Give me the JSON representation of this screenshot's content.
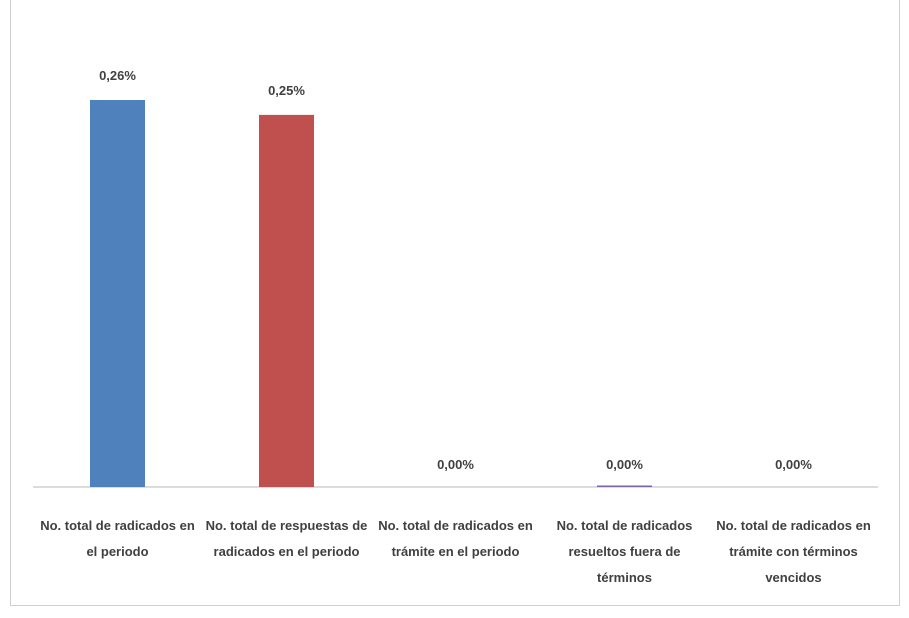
{
  "chart_data": {
    "type": "bar",
    "categories": [
      "No. total de radicados en el periodo",
      "No. total de respuestas de radicados en el periodo",
      "No. total de radicados en trámite en el periodo",
      "No. total de radicados resueltos fuera de términos",
      "No. total de radicados en trámite con términos vencidos"
    ],
    "values": [
      0.26,
      0.25,
      0.0,
      0.0,
      0.0
    ],
    "data_labels": [
      "0,26%",
      "0,25%",
      "0,00%",
      "0,00%",
      "0,00%"
    ],
    "colors": [
      "#4f81bd",
      "#c0504d",
      "#9bbb59",
      "#8064a2",
      "#4bacc6"
    ],
    "ylim": [
      0,
      0.27
    ],
    "grid": false,
    "legend": "none"
  }
}
